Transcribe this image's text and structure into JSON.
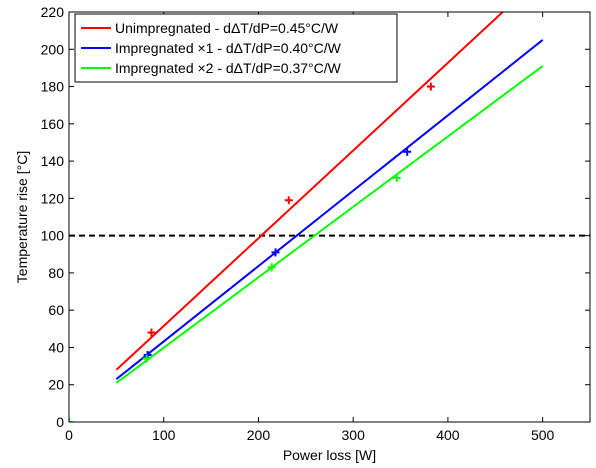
{
  "chart_data": {
    "type": "line",
    "title": "",
    "xlabel": "Power loss  [W]",
    "ylabel": "Temperature rise  [°C]",
    "xlim": [
      0,
      550
    ],
    "ylim": [
      0,
      220
    ],
    "xticks": [
      0,
      100,
      200,
      300,
      400,
      500
    ],
    "yticks": [
      0,
      20,
      40,
      60,
      80,
      100,
      120,
      140,
      160,
      180,
      200,
      220
    ],
    "grid": false,
    "legend_position": "top-left",
    "reference_line": {
      "y": 100,
      "style": "dashed",
      "color": "#000000"
    },
    "origin_point": {
      "x": 0,
      "y": 0,
      "color": "#00ff00"
    },
    "series": [
      {
        "name": "Unimpregnated - dΔT/dP=0.45°C/W",
        "color": "#ff0000",
        "line": {
          "x": [
            50,
            460
          ],
          "y": [
            28,
            221
          ]
        },
        "points": {
          "x": [
            87,
            232,
            382
          ],
          "y": [
            48,
            119,
            180
          ]
        }
      },
      {
        "name": "Impregnated ×1 - dΔT/dP=0.40°C/W",
        "color": "#0000ff",
        "line": {
          "x": [
            50,
            500
          ],
          "y": [
            23,
            205
          ]
        },
        "points": {
          "x": [
            83,
            218,
            357
          ],
          "y": [
            36,
            91,
            145
          ]
        }
      },
      {
        "name": "Impregnated ×2 - dΔT/dP=0.37°C/W",
        "color": "#00ff00",
        "line": {
          "x": [
            50,
            500
          ],
          "y": [
            21,
            191
          ]
        },
        "points": {
          "x": [
            82,
            214,
            346
          ],
          "y": [
            34,
            83,
            131
          ]
        }
      }
    ]
  }
}
